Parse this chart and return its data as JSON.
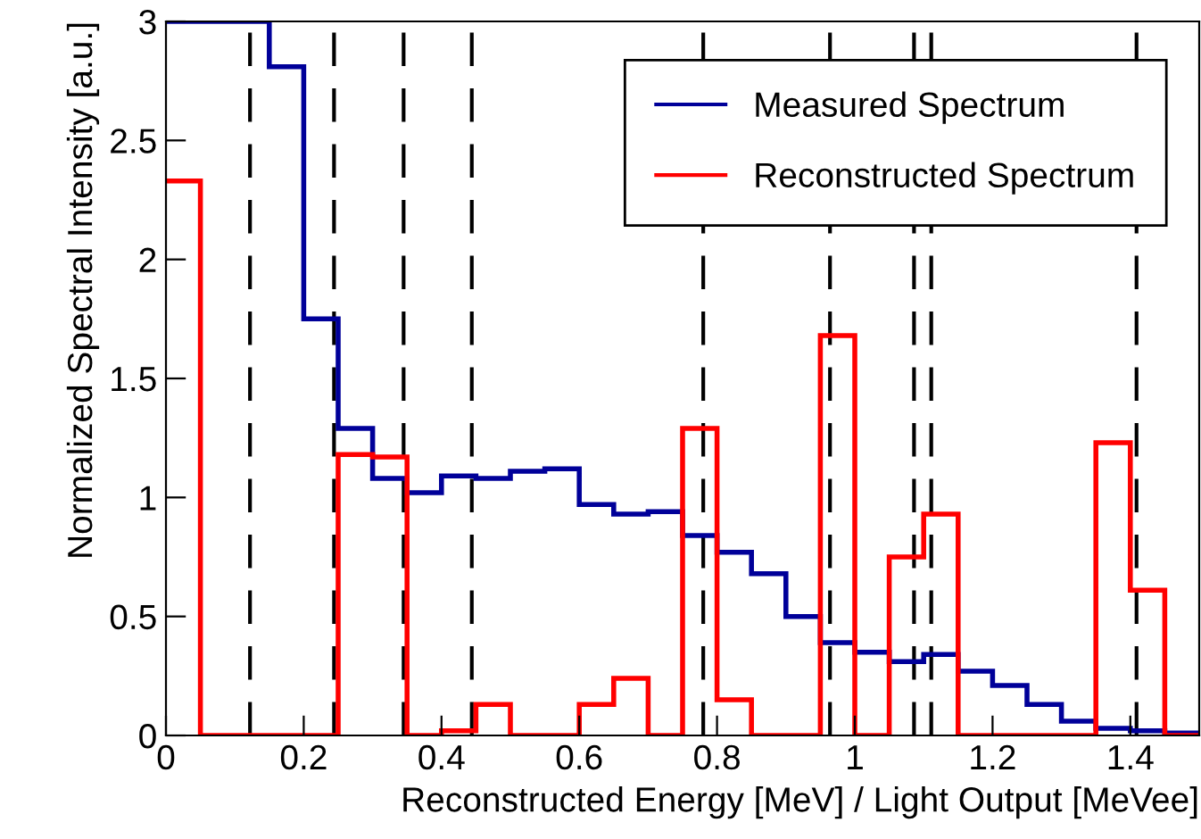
{
  "chart_data": {
    "type": "histogram",
    "xlabel": "Reconstructed Energy [MeV] / Light Output [MeVee]",
    "ylabel": "Normalized Spectral Intensity [a.u.]",
    "bins": [
      0,
      0.05,
      0.1,
      0.15,
      0.2,
      0.25,
      0.3,
      0.35,
      0.4,
      0.45,
      0.5,
      0.55,
      0.6,
      0.65,
      0.7,
      0.75,
      0.8,
      0.85,
      0.9,
      0.95,
      1.0,
      1.05,
      1.1,
      1.15,
      1.2,
      1.25,
      1.3,
      1.35,
      1.4,
      1.45,
      1.5
    ],
    "series": [
      {
        "name": "Measured Spectrum",
        "color": "#000099",
        "values": [
          3,
          3,
          3,
          2.81,
          1.75,
          1.29,
          1.08,
          1.02,
          1.09,
          1.08,
          1.11,
          1.12,
          0.97,
          0.93,
          0.94,
          0.84,
          0.77,
          0.68,
          0.5,
          0.39,
          0.35,
          0.31,
          0.34,
          0.27,
          0.21,
          0.13,
          0.06,
          0.03,
          0.02,
          0.01
        ]
      },
      {
        "name": "Reconstructed Spectrum",
        "color": "#ff0000",
        "values": [
          2.33,
          0,
          0,
          0,
          0,
          1.18,
          1.17,
          0,
          0.02,
          0.13,
          0,
          0,
          0.13,
          0.24,
          0,
          1.29,
          0.15,
          0,
          0,
          1.68,
          0,
          0.75,
          0.93,
          0,
          0,
          0,
          0,
          1.23,
          0.61,
          0
        ]
      }
    ],
    "ref_lines": [
      {
        "axis": "x",
        "value": 0.122,
        "color": "#000000",
        "line_style": "dashed"
      },
      {
        "axis": "x",
        "value": 0.244,
        "color": "#000000",
        "line_style": "dashed"
      },
      {
        "axis": "x",
        "value": 0.345,
        "color": "#000000",
        "line_style": "dashed"
      },
      {
        "axis": "x",
        "value": 0.444,
        "color": "#000000",
        "line_style": "dashed"
      },
      {
        "axis": "x",
        "value": 0.78,
        "color": "#000000",
        "line_style": "dashed"
      },
      {
        "axis": "x",
        "value": 0.964,
        "color": "#000000",
        "line_style": "dashed"
      },
      {
        "axis": "x",
        "value": 1.086,
        "color": "#000000",
        "line_style": "dashed"
      },
      {
        "axis": "x",
        "value": 1.111,
        "color": "#000000",
        "line_style": "dashed"
      },
      {
        "axis": "x",
        "value": 1.409,
        "color": "#000000",
        "line_style": "dashed"
      }
    ],
    "xlim": [
      0,
      1.5
    ],
    "xticks": [
      0,
      0.2,
      0.4,
      0.6,
      0.8,
      1,
      1.2,
      1.4
    ],
    "ylim": [
      0,
      3
    ],
    "yticks": [
      0,
      0.5,
      1,
      1.5,
      2,
      2.5,
      3
    ],
    "grid": false,
    "legend": "top right"
  }
}
